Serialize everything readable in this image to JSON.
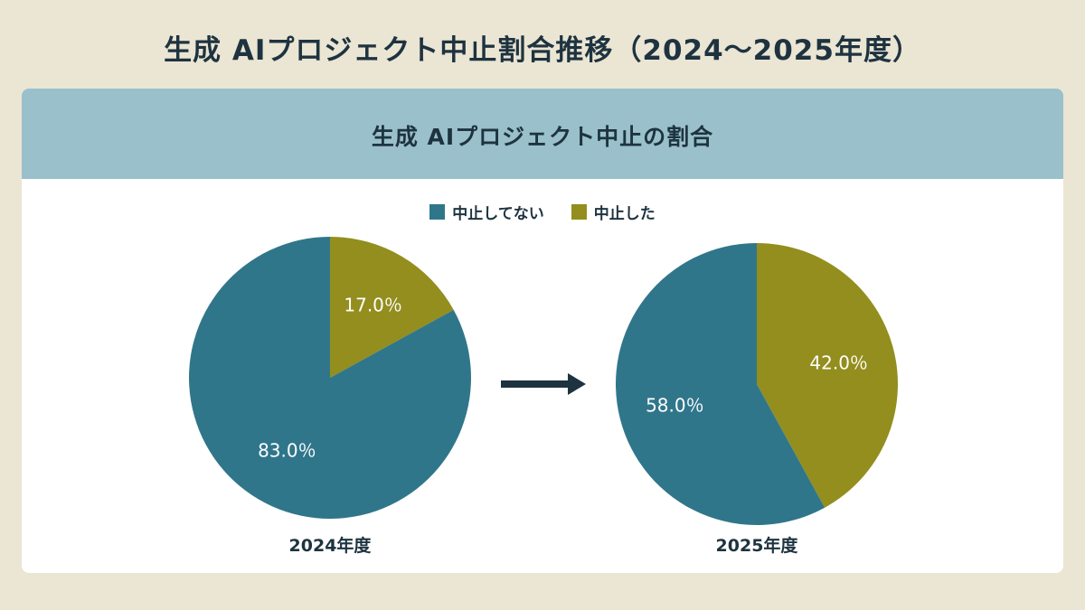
{
  "page_title": "生成 AIプロジェクト中止割合推移（2024～2025年度）",
  "card_title": "生成 AIプロジェクト中止の割合",
  "chart_data": [
    {
      "type": "pie",
      "year_label": "2024年度",
      "categories": [
        "中止してない",
        "中止した"
      ],
      "values": [
        83.0,
        17.0
      ],
      "data_labels": [
        "83.0％",
        "17.0％"
      ]
    },
    {
      "type": "pie",
      "year_label": "2025年度",
      "categories": [
        "中止してない",
        "中止した"
      ],
      "values": [
        58.0,
        42.0
      ],
      "data_labels": [
        "58.0％",
        "42.0％"
      ]
    }
  ],
  "legend": [
    {
      "label": "中止してない",
      "color": "#30768b"
    },
    {
      "label": "中止した",
      "color": "#938e1e"
    }
  ],
  "colors": {
    "not_cancelled": "#30768b",
    "cancelled": "#938e1e",
    "arrow": "#1e3340"
  },
  "arrow_icon": "right-arrow-icon"
}
